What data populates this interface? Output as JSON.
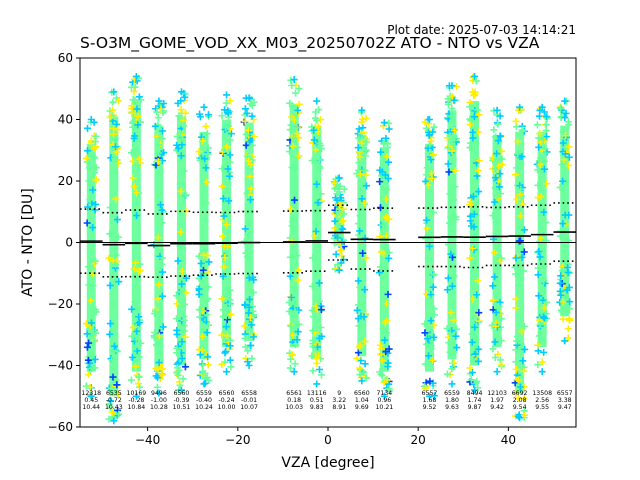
{
  "plot_date": "Plot date: 2025-07-03 14:14:21",
  "chart_data": {
    "type": "scatter",
    "title": "S-O3M_GOME_VOD_XX_M03_20250702Z ATO - NTO vs VZA",
    "xlabel": "VZA [degree]",
    "ylabel": "ATO - NTO [DU]",
    "xlim": [
      -55,
      55
    ],
    "ylim": [
      -60,
      60
    ],
    "xticks": [
      -40,
      -20,
      0,
      20,
      40
    ],
    "yticks": [
      -60,
      -40,
      -20,
      0,
      20,
      40,
      60
    ],
    "grid": false,
    "zero_line": 0,
    "marker": "+",
    "point_colors": [
      "#66ff99",
      "#00ccff",
      "#ffee00",
      "#0044ff"
    ],
    "bins": [
      {
        "vza": -52.5,
        "n": "12318",
        "mean": "0.45",
        "std": "10.44",
        "top": 40,
        "bottom": -50
      },
      {
        "vza": -47.5,
        "n": "6535",
        "mean": "-0.72",
        "std": "10.43",
        "top": 49,
        "bottom": -58
      },
      {
        "vza": -42.5,
        "n": "10169",
        "mean": "-0.28",
        "std": "10.84",
        "top": 54,
        "bottom": -50
      },
      {
        "vza": -37.5,
        "n": "9496",
        "mean": "-1.00",
        "std": "10.28",
        "top": 46,
        "bottom": -49
      },
      {
        "vza": -32.5,
        "n": "6560",
        "mean": "-0.39",
        "std": "10.51",
        "top": 49,
        "bottom": -48
      },
      {
        "vza": -27.5,
        "n": "6559",
        "mean": "-0.40",
        "std": "10.24",
        "top": 44,
        "bottom": -46
      },
      {
        "vza": -22.5,
        "n": "6560",
        "mean": "-0.24",
        "std": "10.00",
        "top": 48,
        "bottom": -42
      },
      {
        "vza": -17.5,
        "n": "6558",
        "mean": "-0.01",
        "std": "10.07",
        "top": 47,
        "bottom": -40
      },
      {
        "vza": -7.5,
        "n": "6561",
        "mean": "0.18",
        "std": "10.03",
        "top": 53,
        "bottom": -42
      },
      {
        "vza": -2.5,
        "n": "13116",
        "mean": "0.51",
        "std": "9.83",
        "top": 46,
        "bottom": -46
      },
      {
        "vza": 2.5,
        "n": "9",
        "mean": "3.22",
        "std": "8.91",
        "top": 21,
        "bottom": -9
      },
      {
        "vza": 7.5,
        "n": "6560",
        "mean": "1.04",
        "std": "9.69",
        "top": 43,
        "bottom": -45
      },
      {
        "vza": 12.5,
        "n": "7134",
        "mean": "0.96",
        "std": "10.21",
        "top": 39,
        "bottom": -50
      },
      {
        "vza": 22.5,
        "n": "6557",
        "mean": "1.68",
        "std": "9.52",
        "top": 40,
        "bottom": -50
      },
      {
        "vza": 27.5,
        "n": "6559",
        "mean": "1.80",
        "std": "9.63",
        "top": 51,
        "bottom": -46
      },
      {
        "vza": 32.5,
        "n": "8494",
        "mean": "1.74",
        "std": "9.87",
        "top": 54,
        "bottom": -48
      },
      {
        "vza": 37.5,
        "n": "12103",
        "mean": "1.97",
        "std": "9.42",
        "top": 43,
        "bottom": -42
      },
      {
        "vza": 42.5,
        "n": "6692",
        "mean": "2.08",
        "std": "9.54",
        "top": 44,
        "bottom": -57
      },
      {
        "vza": 47.5,
        "n": "13508",
        "mean": "2.56",
        "std": "9.55",
        "top": 44,
        "bottom": -42
      },
      {
        "vza": 52.5,
        "n": "6557",
        "mean": "3.38",
        "std": "9.47",
        "top": 46,
        "bottom": -32
      }
    ]
  }
}
